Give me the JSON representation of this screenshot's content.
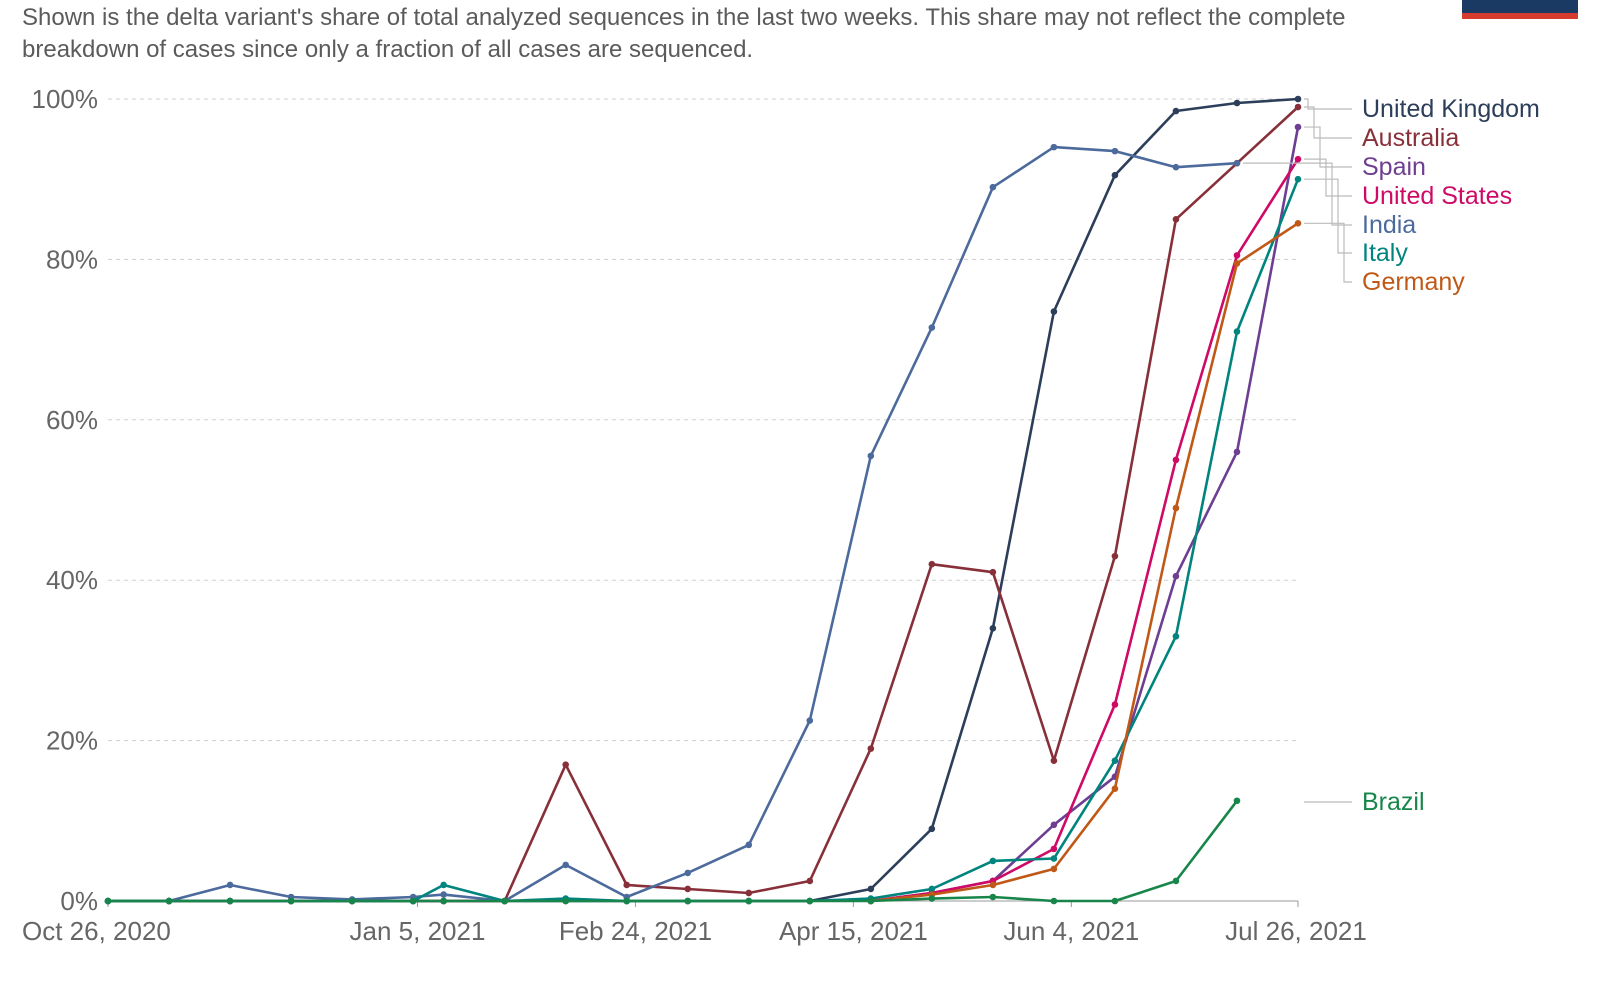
{
  "subtitle": "Shown is the delta variant's share of total analyzed sequences in the last two weeks. This share may not reflect the complete breakdown of cases since only a fraction of all cases are sequenced.",
  "colors": {
    "flag_blue": "#1a3a63",
    "flag_red": "#d63b2f",
    "grid": "#cfcfcf",
    "axis_text": "#666666"
  },
  "chart_data": {
    "type": "line",
    "x": [
      "2020-10-26",
      "2020-11-09",
      "2020-11-23",
      "2020-12-07",
      "2020-12-21",
      "2021-01-04",
      "2021-01-11",
      "2021-01-25",
      "2021-02-08",
      "2021-02-22",
      "2021-03-08",
      "2021-03-22",
      "2021-04-05",
      "2021-04-19",
      "2021-05-03",
      "2021-05-17",
      "2021-05-31",
      "2021-06-14",
      "2021-06-28",
      "2021-07-12",
      "2021-07-26"
    ],
    "x_tick_labels": [
      "Oct 26, 2020",
      "Jan 5, 2021",
      "Feb 24, 2021",
      "Apr 15, 2021",
      "Jun 4, 2021",
      "Jul 26, 2021"
    ],
    "x_tick_dates": [
      "2020-10-26",
      "2021-01-05",
      "2021-02-24",
      "2021-04-15",
      "2021-06-04",
      "2021-07-26"
    ],
    "y_tick_labels": [
      "0%",
      "20%",
      "40%",
      "60%",
      "80%",
      "100%"
    ],
    "y_ticks": [
      0,
      20,
      40,
      60,
      80,
      100
    ],
    "ylim": [
      0,
      100
    ],
    "grid": "horizontal dashed",
    "legend": "right, end-labels",
    "series": [
      {
        "name": "United Kingdom",
        "color": "#2c3e5a",
        "values": [
          0,
          0,
          0,
          0,
          0,
          0,
          0,
          0,
          0,
          0,
          0,
          0,
          0,
          1.5,
          9,
          34,
          73.5,
          90.5,
          98.5,
          99.5,
          100
        ]
      },
      {
        "name": "Australia",
        "color": "#883039",
        "values": [
          0,
          0,
          0,
          0,
          0,
          0,
          0,
          0,
          17,
          2,
          1.5,
          1,
          2.5,
          19,
          42,
          41,
          17.5,
          43,
          85,
          92,
          99
        ]
      },
      {
        "name": "Spain",
        "color": "#6d3e91",
        "values": [
          null,
          null,
          null,
          null,
          null,
          null,
          null,
          null,
          null,
          null,
          null,
          null,
          null,
          0,
          1,
          2.5,
          9.5,
          15.5,
          40.5,
          56,
          96.5
        ]
      },
      {
        "name": "United States",
        "color": "#cf0a66",
        "values": [
          null,
          null,
          null,
          null,
          null,
          null,
          null,
          null,
          null,
          null,
          null,
          null,
          null,
          0,
          1,
          2.5,
          6.5,
          24.5,
          55,
          80.5,
          92.5
        ]
      },
      {
        "name": "India",
        "color": "#4c6a9c",
        "values": [
          0,
          0,
          2,
          0.5,
          0.2,
          0.5,
          0.8,
          0,
          4.5,
          0.5,
          3.5,
          7,
          22.5,
          55.5,
          71.5,
          89,
          94,
          93.5,
          91.5,
          92,
          null
        ]
      },
      {
        "name": "Italy",
        "color": "#00847e",
        "values": [
          0,
          0,
          0,
          0,
          0,
          0,
          2,
          0,
          0.3,
          0,
          0,
          0,
          0,
          0.3,
          1.5,
          5,
          5.3,
          17.5,
          33,
          71,
          90
        ]
      },
      {
        "name": "Germany",
        "color": "#c05917",
        "values": [
          null,
          null,
          null,
          null,
          null,
          null,
          null,
          null,
          null,
          null,
          null,
          null,
          null,
          0,
          0.8,
          2,
          4,
          14,
          49,
          79.5,
          84.5
        ]
      },
      {
        "name": "Brazil",
        "color": "#18864a",
        "values": [
          0,
          0,
          0,
          0,
          0,
          0,
          0,
          0,
          0,
          0,
          0,
          0,
          0,
          0,
          0.3,
          0.5,
          0,
          0,
          2.5,
          12.5,
          null
        ]
      }
    ]
  }
}
